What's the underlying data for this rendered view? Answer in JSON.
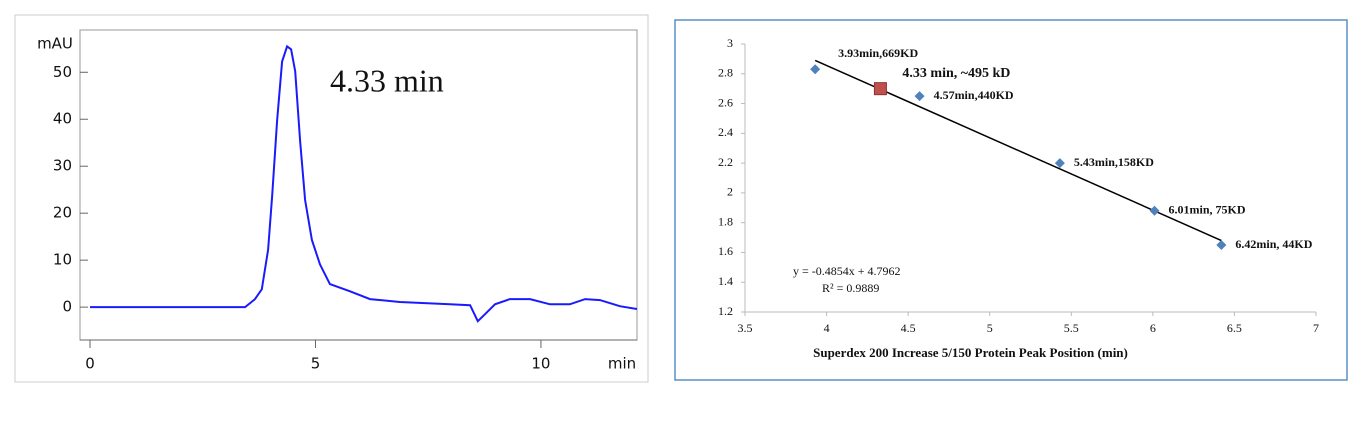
{
  "chart_data": [
    {
      "type": "line",
      "xlabel": "min",
      "ylabel": "mAU",
      "annotation": "4.33 min",
      "annotation_color": "#e8141c",
      "xlim": [
        0,
        12.13
      ],
      "ylim": [
        -7,
        59
      ],
      "xticks": [
        0,
        5,
        10
      ],
      "yticks": [
        0,
        10,
        20,
        30,
        40,
        50
      ],
      "color": "#1a1aff",
      "x": [
        0,
        3.44,
        3.66,
        3.81,
        3.95,
        4.04,
        4.15,
        4.26,
        4.37,
        4.46,
        4.55,
        4.66,
        4.77,
        4.92,
        5.1,
        5.32,
        5.76,
        6.21,
        6.87,
        7.98,
        8.43,
        8.6,
        8.76,
        8.98,
        9.31,
        9.76,
        10.2,
        10.64,
        10.98,
        11.31,
        11.75,
        12.13
      ],
      "values": [
        0,
        0,
        1.7,
        3.8,
        12.2,
        23.8,
        39.7,
        52.3,
        55.5,
        54.9,
        50.2,
        35.4,
        22.8,
        14.3,
        9.1,
        4.9,
        3.4,
        1.7,
        1.1,
        0.6,
        0.4,
        -3.0,
        -1.5,
        0.6,
        1.7,
        1.7,
        0.6,
        0.6,
        1.7,
        1.5,
        0.2,
        -0.4
      ]
    },
    {
      "type": "scatter",
      "xlabel": "Superdex 200 Increase 5/150  Protein Peak Position (min)",
      "xlim": [
        3.5,
        7
      ],
      "ylim": [
        1.2,
        3
      ],
      "xticks": [
        3.5,
        4,
        4.5,
        5,
        5.5,
        6,
        6.5,
        7
      ],
      "yticks": [
        1.2,
        1.4,
        1.6,
        1.8,
        2,
        2.2,
        2.4,
        2.6,
        2.8,
        3
      ],
      "series": [
        {
          "color": "#4f81bd",
          "x": [
            3.93,
            4.57,
            5.43,
            6.01,
            6.42
          ],
          "values": [
            2.83,
            2.65,
            2.2,
            1.88,
            1.65
          ],
          "point_labels": [
            "3.93min,669KD",
            "4.57min,440KD",
            "5.43min,158KD",
            "6.01min, 75KD",
            "6.42min, 44KD"
          ]
        },
        {
          "color": "#c0504d",
          "x": [
            4.33
          ],
          "values": [
            2.7
          ],
          "point_labels": [
            "4.33 min, ~495 kD"
          ]
        }
      ],
      "trendline": {
        "color": "#000000",
        "x": [
          3.93,
          6.42
        ],
        "values": [
          2.89,
          1.68
        ]
      },
      "equation": "y = -0.4854x + 4.7962",
      "r_squared": "R² = 0.9889"
    }
  ]
}
